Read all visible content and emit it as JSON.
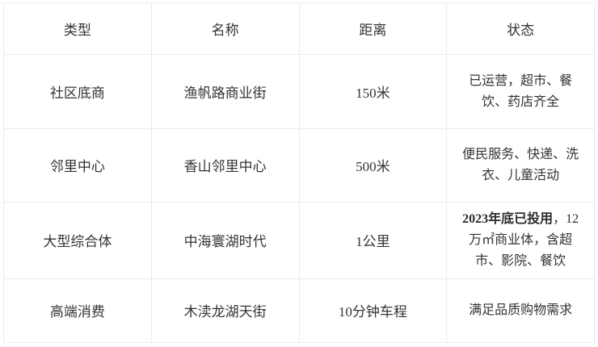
{
  "table": {
    "colors": {
      "border": "#ebebeb",
      "text": "#333333",
      "background": "#ffffff"
    },
    "headers": {
      "type": "类型",
      "name": "名称",
      "distance": "距离",
      "status": "状态"
    },
    "rows": [
      {
        "type": "社区底商",
        "name": "渔帆路商业街",
        "distance": "150米",
        "status_bold": "",
        "status": "已运营，超市、餐饮、药店齐全"
      },
      {
        "type": "邻里中心",
        "name": "香山邻里中心",
        "distance": "500米",
        "status_bold": "",
        "status": "便民服务、快递、洗衣、儿童活动"
      },
      {
        "type": "大型综合体",
        "name": "中海寰湖时代",
        "distance": "1公里",
        "status_bold": "2023年底已投用",
        "status": "，12万㎡商业体，含超市、影院、餐饮"
      },
      {
        "type": "高端消费",
        "name": "木渎龙湖天街",
        "distance": "10分钟车程",
        "status_bold": "",
        "status": "满足品质购物需求"
      }
    ]
  }
}
